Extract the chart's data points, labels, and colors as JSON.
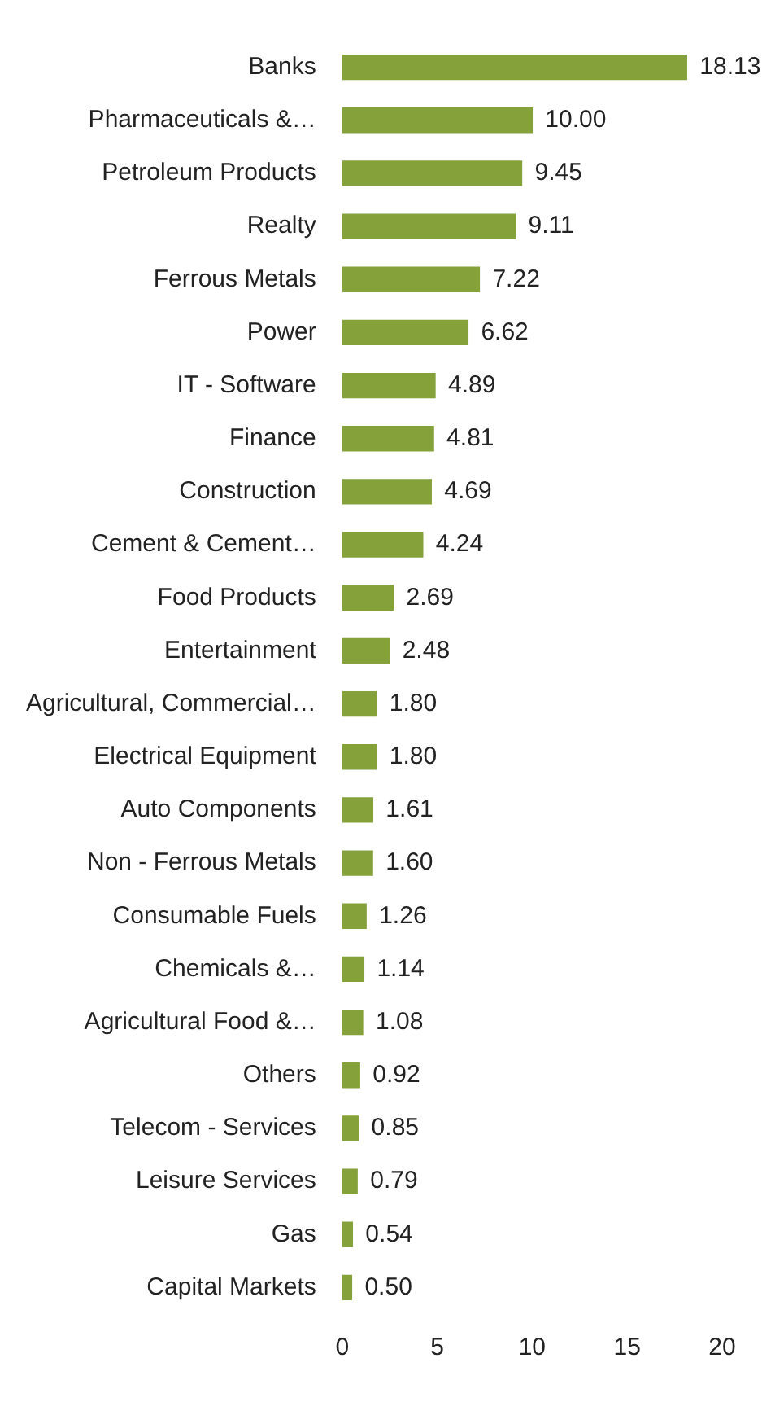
{
  "chart_data": {
    "type": "bar",
    "orientation": "horizontal",
    "categories": [
      "Banks",
      "Pharmaceuticals &…",
      "Petroleum Products",
      "Realty",
      "Ferrous Metals",
      "Power",
      "IT - Software",
      "Finance",
      "Construction",
      "Cement & Cement…",
      "Food Products",
      "Entertainment",
      "Agricultural, Commercial…",
      "Electrical Equipment",
      "Auto Components",
      "Non - Ferrous Metals",
      "Consumable Fuels",
      "Chemicals &…",
      "Agricultural Food &…",
      "Others",
      "Telecom - Services",
      "Leisure Services",
      "Gas",
      "Capital Markets"
    ],
    "values": [
      18.13,
      10.0,
      9.45,
      9.11,
      7.22,
      6.62,
      4.89,
      4.81,
      4.69,
      4.24,
      2.69,
      2.48,
      1.8,
      1.8,
      1.61,
      1.6,
      1.26,
      1.14,
      1.08,
      0.92,
      0.85,
      0.79,
      0.54,
      0.5
    ],
    "value_labels": [
      "18.13",
      "10.00",
      "9.45",
      "9.11",
      "7.22",
      "6.62",
      "4.89",
      "4.81",
      "4.69",
      "4.24",
      "2.69",
      "2.48",
      "1.80",
      "1.80",
      "1.61",
      "1.60",
      "1.26",
      "1.14",
      "1.08",
      "0.92",
      "0.85",
      "0.79",
      "0.54",
      "0.50"
    ],
    "color": "#84a13a",
    "xlim": [
      0,
      20
    ],
    "xticks": [
      0,
      5,
      10,
      15,
      20
    ],
    "grid": false,
    "legend": false
  }
}
